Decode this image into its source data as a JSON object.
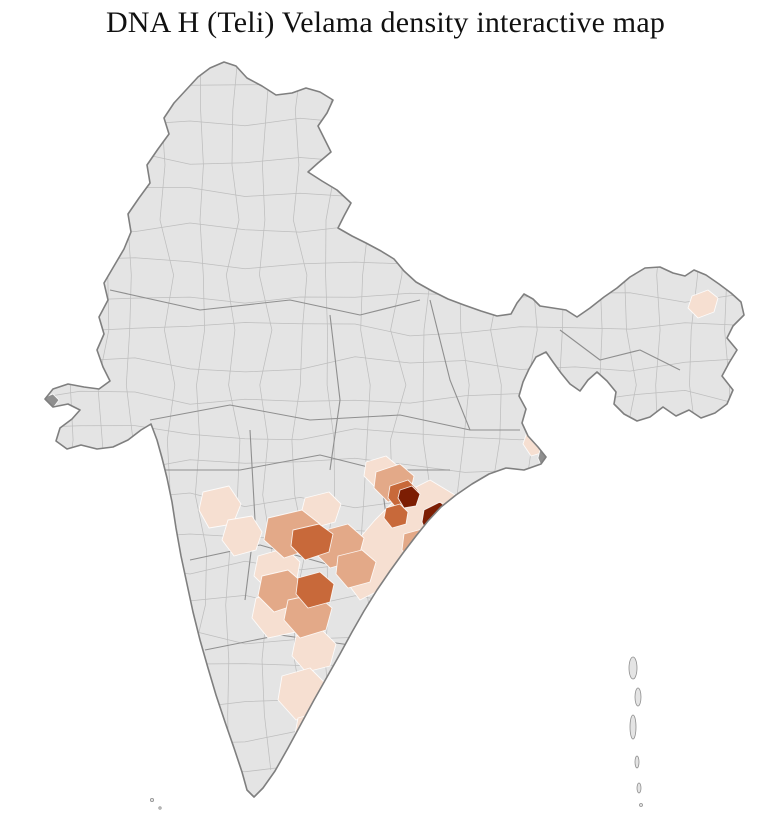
{
  "page": {
    "title": "DNA H (Teli) Velama density interactive map"
  },
  "map": {
    "colors": {
      "background": "#ffffff",
      "region_base": "#e4e4e4",
      "district_line": "#bcbcbc",
      "state_line": "#8f8f8f",
      "outline": "#7f7f7f",
      "density_low": "#f6dfd1",
      "density_medium": "#e3a988",
      "density_high": "#c8693a",
      "density_highest": "#7c1d03",
      "dark_gray_district": "#8f8f8f"
    },
    "density_levels": [
      "none",
      "low",
      "medium",
      "high",
      "highest"
    ]
  }
}
